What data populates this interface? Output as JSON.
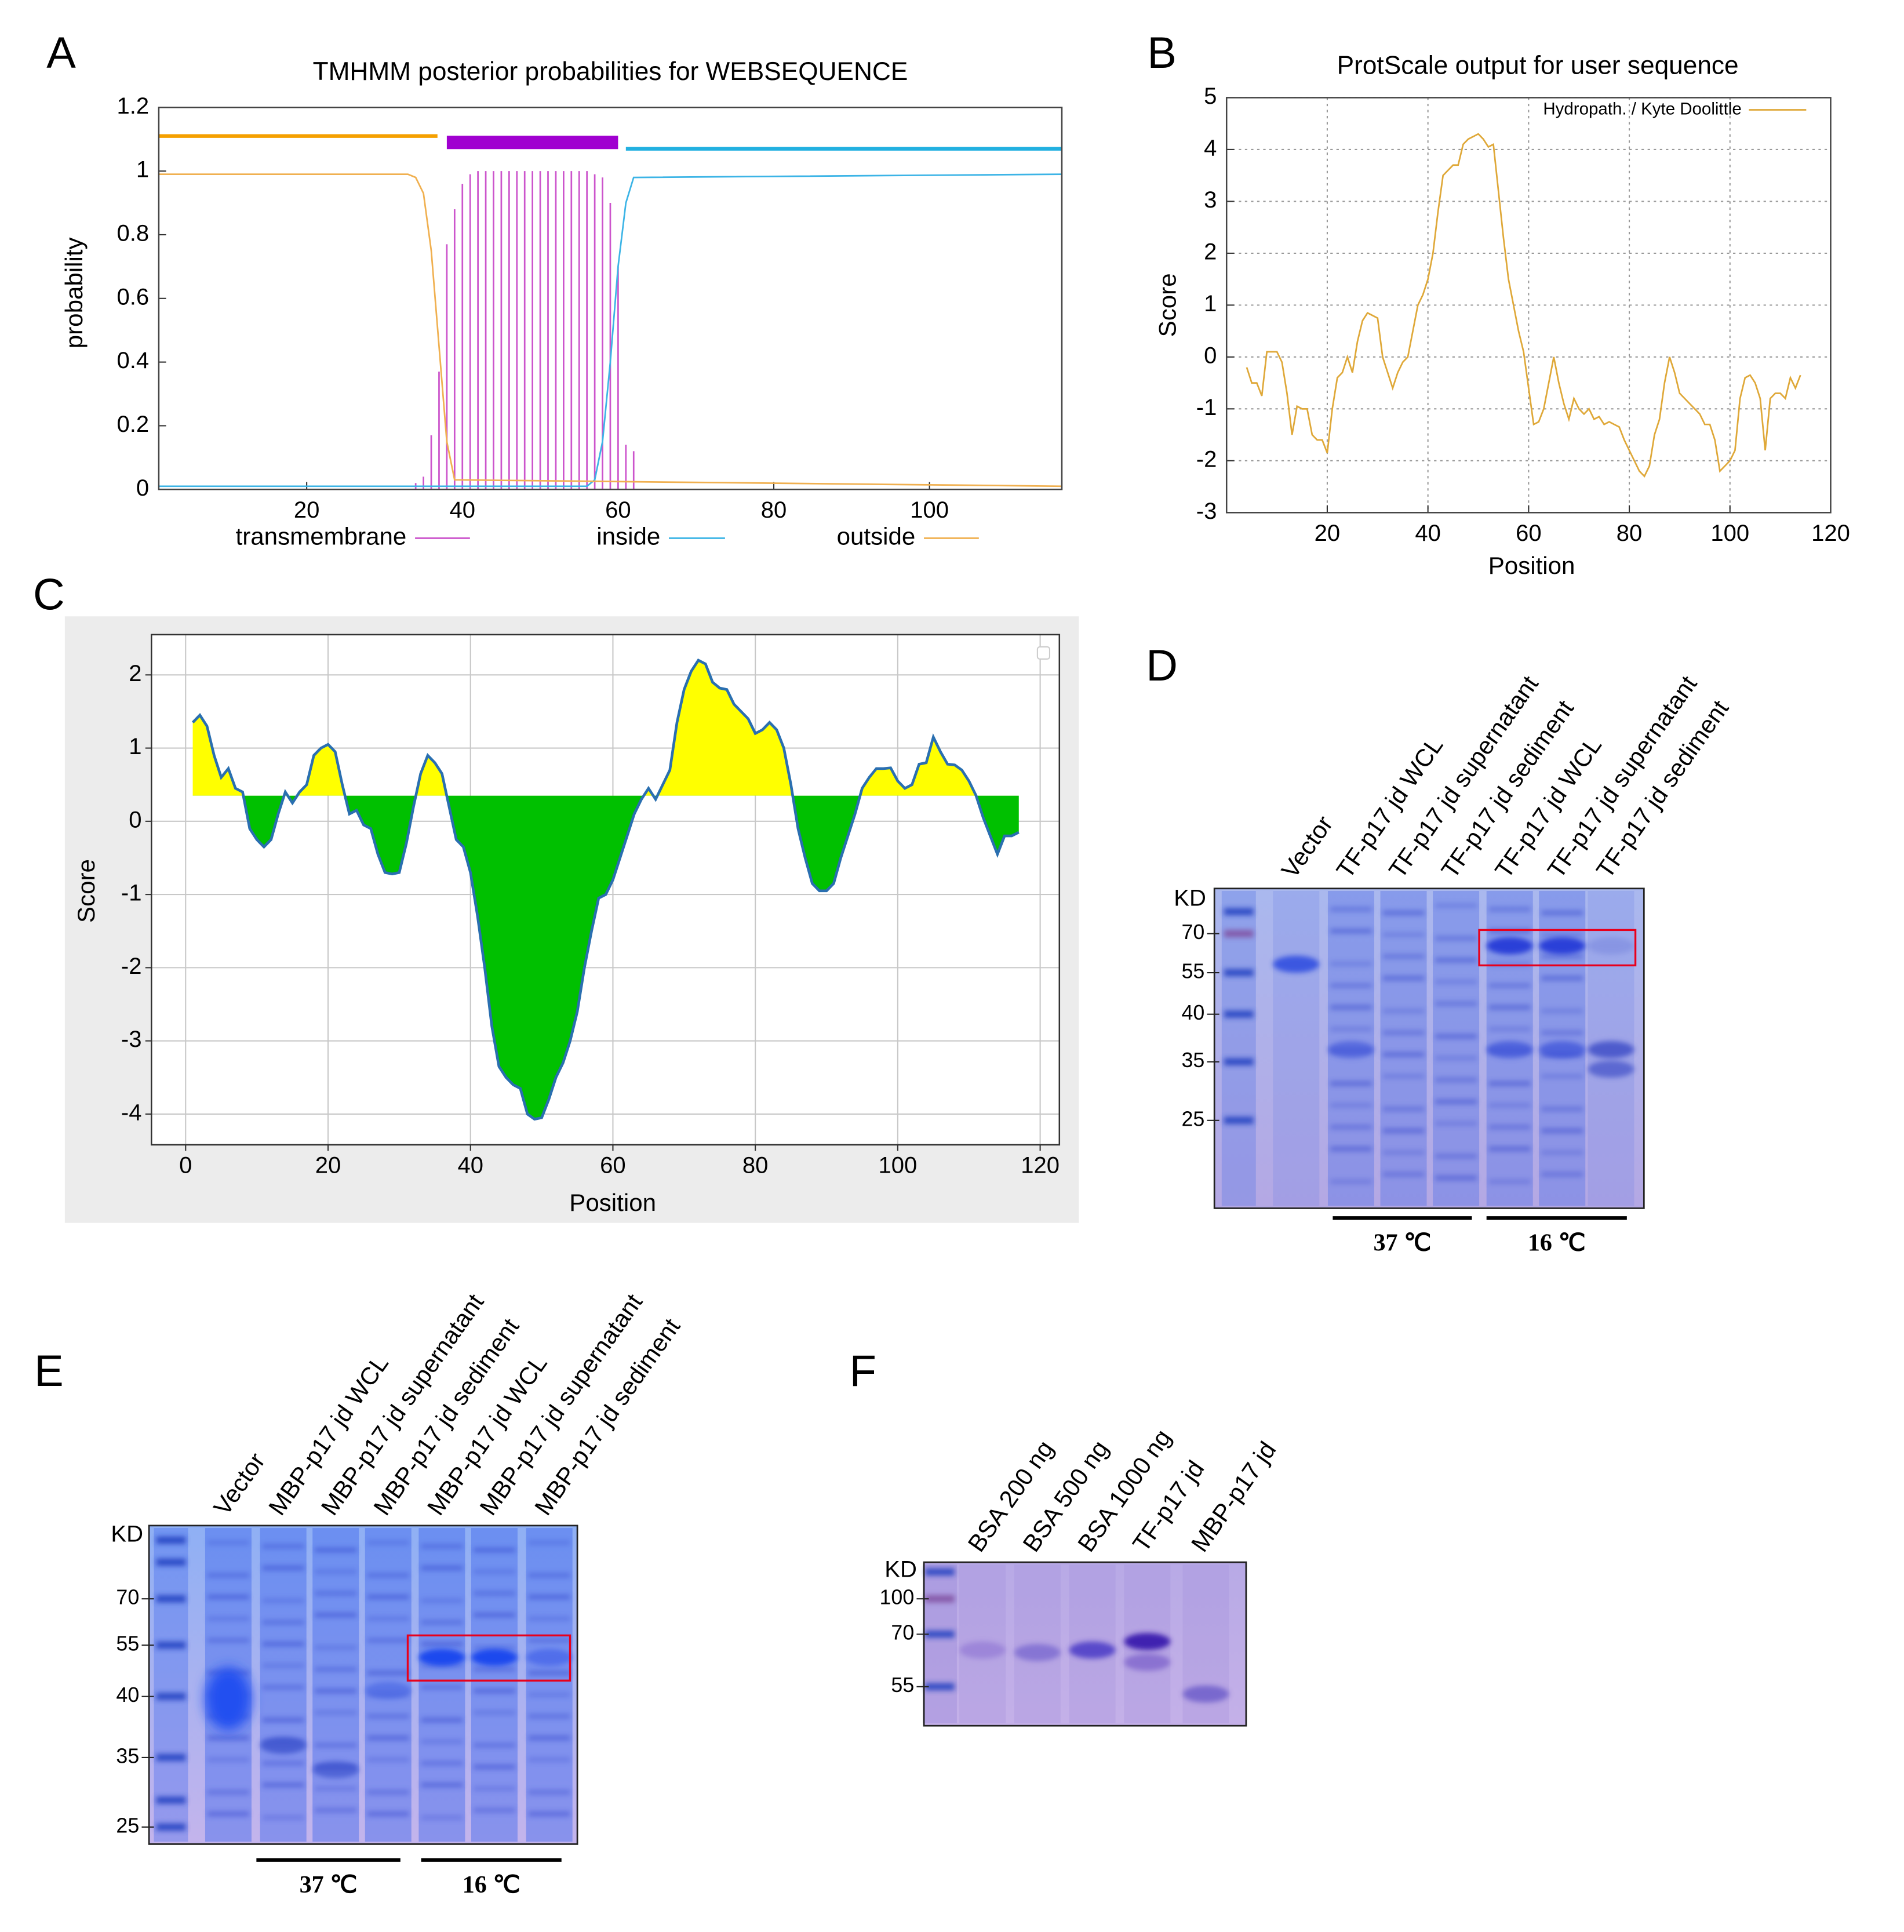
{
  "panel_labels": [
    "A",
    "B",
    "C",
    "D",
    "E",
    "F"
  ],
  "chart_data": [
    {
      "type": "line",
      "title": "TMHMM posterior probabilities for WEBSEQUENCE",
      "ylabel": "probability",
      "xlim": [
        1,
        117
      ],
      "ylim": [
        0,
        1.2
      ],
      "xticks": [
        20,
        40,
        60,
        80,
        100
      ],
      "yticks": [
        0,
        0.2,
        0.4,
        0.6,
        0.8,
        1,
        1.2
      ],
      "grid": false,
      "legend": "bottom",
      "series": [
        {
          "name": "transmembrane",
          "color": "#cc55cc",
          "style": "impulse",
          "x": [
            34,
            35,
            36,
            37,
            38,
            39,
            40,
            41,
            42,
            43,
            44,
            45,
            46,
            47,
            48,
            49,
            50,
            51,
            52,
            53,
            54,
            55,
            56,
            57,
            58,
            59,
            60,
            61,
            62
          ],
          "values": [
            0.02,
            0.04,
            0.17,
            0.37,
            0.77,
            0.88,
            0.96,
            0.99,
            1,
            1,
            1,
            1,
            1,
            1,
            1,
            1,
            1,
            1,
            1,
            1,
            1,
            1,
            1,
            0.99,
            0.98,
            0.9,
            0.7,
            0.14,
            0.12
          ]
        },
        {
          "name": "inside",
          "color": "#3cb4e6",
          "x": [
            1,
            56,
            57,
            58,
            59,
            60,
            61,
            62,
            117
          ],
          "values": [
            0.01,
            0.01,
            0.03,
            0.15,
            0.4,
            0.7,
            0.9,
            0.98,
            0.99
          ]
        },
        {
          "name": "outside",
          "color": "#f0b050",
          "x": [
            1,
            33,
            34,
            35,
            36,
            37,
            38,
            39,
            117
          ],
          "values": [
            0.99,
            0.99,
            0.98,
            0.93,
            0.75,
            0.45,
            0.15,
            0.03,
            0.01
          ]
        }
      ],
      "regions": [
        {
          "start": 1,
          "end": 36.8,
          "level": 1.11,
          "color": "#f5a000"
        },
        {
          "start": 38,
          "end": 60,
          "level": 1.09,
          "color": "#a000d0"
        },
        {
          "start": 61,
          "end": 117,
          "level": 1.07,
          "color": "#22b0e0"
        }
      ]
    },
    {
      "type": "line",
      "title": "ProtScale output for user sequence",
      "xlabel": "Position",
      "ylabel": "Score",
      "xlim": [
        0,
        120
      ],
      "ylim": [
        -3,
        5
      ],
      "xticks": [
        20,
        40,
        60,
        80,
        100,
        120
      ],
      "yticks": [
        -3,
        -2,
        -1,
        0,
        1,
        2,
        3,
        4,
        5
      ],
      "grid": true,
      "legend": "upper right",
      "series": [
        {
          "name": "Hydropath. / Kyte Doolittle",
          "color": "#dfa838",
          "x": [
            4,
            5,
            6,
            7,
            8,
            9,
            10,
            11,
            12,
            13,
            14,
            15,
            16,
            17,
            18,
            19,
            20,
            21,
            22,
            23,
            24,
            25,
            26,
            27,
            28,
            29,
            30,
            31,
            32,
            33,
            34,
            35,
            36,
            37,
            38,
            39,
            40,
            41,
            42,
            43,
            44,
            45,
            46,
            47,
            48,
            49,
            50,
            51,
            52,
            53,
            54,
            55,
            56,
            57,
            58,
            59,
            60,
            61,
            62,
            63,
            64,
            65,
            66,
            67,
            68,
            69,
            70,
            71,
            72,
            73,
            74,
            75,
            76,
            77,
            78,
            79,
            80,
            81,
            82,
            83,
            84,
            85,
            86,
            87,
            88,
            89,
            90,
            91,
            92,
            93,
            94,
            95,
            96,
            97,
            98,
            99,
            100,
            101,
            102,
            103,
            104,
            105,
            106,
            107,
            108,
            109,
            110,
            111,
            112,
            113,
            114
          ],
          "values": [
            -0.2,
            -0.5,
            -0.5,
            -0.75,
            0.1,
            0.1,
            0.1,
            -0.1,
            -0.7,
            -1.5,
            -0.95,
            -1,
            -1,
            -1.5,
            -1.6,
            -1.6,
            -1.85,
            -1,
            -0.4,
            -0.3,
            0,
            -0.3,
            0.3,
            0.7,
            0.85,
            0.8,
            0.75,
            0,
            -0.3,
            -0.6,
            -0.3,
            -0.1,
            0,
            0.5,
            1,
            1.2,
            1.5,
            2,
            2.8,
            3.5,
            3.6,
            3.7,
            3.7,
            4.1,
            4.2,
            4.25,
            4.3,
            4.2,
            4.05,
            4.1,
            3.2,
            2.3,
            1.5,
            1,
            0.5,
            0.1,
            -0.6,
            -1.3,
            -1.25,
            -1,
            -0.5,
            0,
            -0.5,
            -0.9,
            -1.2,
            -0.8,
            -1,
            -1.1,
            -1,
            -1.2,
            -1.15,
            -1.3,
            -1.25,
            -1.3,
            -1.35,
            -1.6,
            -1.8,
            -2,
            -2.2,
            -2.3,
            -2.1,
            -1.5,
            -1.2,
            -0.5,
            0,
            -0.3,
            -0.7,
            -0.8,
            -0.9,
            -1,
            -1.1,
            -1.3,
            -1.3,
            -1.6,
            -2.2,
            -2.1,
            -2,
            -1.8,
            -0.8,
            -0.4,
            -0.35,
            -0.5,
            -0.8,
            -1.8,
            -0.8,
            -0.7,
            -0.7,
            -0.8,
            -0.4,
            -0.6,
            -0.35
          ]
        }
      ]
    },
    {
      "type": "area",
      "xlabel": "Position",
      "ylabel": "Score",
      "xlim": [
        -4.8,
        122.7
      ],
      "ylim": [
        -4.42,
        2.55
      ],
      "xticks": [
        0,
        20,
        40,
        60,
        80,
        100,
        120
      ],
      "yticks": [
        -4,
        -3,
        -2,
        -1,
        0,
        1,
        2
      ],
      "grid": true,
      "threshold": 0.35,
      "above_color": "#ffff00",
      "below_color": "#00c000",
      "series": [
        {
          "color": "#2a6fb0",
          "x": [
            1,
            2,
            3,
            4,
            5,
            6,
            7,
            8,
            9,
            10,
            11,
            12,
            13,
            14,
            15,
            16,
            17,
            18,
            19,
            20,
            21,
            22,
            23,
            24,
            25,
            26,
            27,
            28,
            29,
            30,
            31,
            32,
            33,
            34,
            35,
            36,
            37,
            38,
            39,
            40,
            41,
            42,
            43,
            44,
            45,
            46,
            47,
            48,
            49,
            50,
            51,
            52,
            53,
            54,
            55,
            56,
            57,
            58,
            59,
            60,
            61,
            62,
            63,
            64,
            65,
            66,
            67,
            68,
            69,
            70,
            71,
            72,
            73,
            74,
            75,
            76,
            77,
            78,
            79,
            80,
            81,
            82,
            83,
            84,
            85,
            86,
            87,
            88,
            89,
            90,
            91,
            92,
            93,
            94,
            95,
            96,
            97,
            98,
            99,
            100,
            101,
            102,
            103,
            104,
            105,
            106,
            107,
            108,
            109,
            110,
            111,
            112,
            113,
            114,
            115,
            116,
            117
          ],
          "values": [
            1.35,
            1.45,
            1.3,
            0.9,
            0.6,
            0.72,
            0.45,
            0.4,
            -0.1,
            -0.25,
            -0.35,
            -0.25,
            0.1,
            0.4,
            0.25,
            0.4,
            0.5,
            0.9,
            1,
            1.05,
            0.95,
            0.5,
            0.1,
            0.15,
            -0.05,
            -0.1,
            -0.45,
            -0.7,
            -0.72,
            -0.7,
            -0.3,
            0.2,
            0.65,
            0.9,
            0.8,
            0.65,
            0.2,
            -0.25,
            -0.35,
            -0.7,
            -1.3,
            -2,
            -2.8,
            -3.35,
            -3.5,
            -3.6,
            -3.65,
            -4,
            -4.07,
            -4.05,
            -3.8,
            -3.5,
            -3.3,
            -3,
            -2.6,
            -2,
            -1.5,
            -1.05,
            -1,
            -0.8,
            -0.5,
            -0.2,
            0.1,
            0.3,
            0.45,
            0.3,
            0.5,
            0.7,
            1.35,
            1.8,
            2.05,
            2.2,
            2.15,
            1.9,
            1.82,
            1.8,
            1.6,
            1.5,
            1.4,
            1.2,
            1.25,
            1.35,
            1.25,
            1,
            0.5,
            -0.1,
            -0.5,
            -0.85,
            -0.95,
            -0.95,
            -0.85,
            -0.5,
            -0.2,
            0.1,
            0.45,
            0.6,
            0.72,
            0.72,
            0.73,
            0.55,
            0.45,
            0.5,
            0.78,
            0.8,
            1.15,
            0.95,
            0.78,
            0.77,
            0.7,
            0.55,
            0.35,
            0.05,
            -0.2,
            -0.45,
            -0.2,
            -0.2,
            -0.15
          ]
        }
      ]
    }
  ],
  "gels": [
    {
      "unit": "KD",
      "markers": [
        70,
        55,
        40,
        35,
        25
      ],
      "lanes": [
        "Vector",
        "TF-p17 jd WCL",
        "TF-p17 jd supernatant",
        "TF-p17 jd sediment",
        "TF-p17 jd WCL",
        "TF-p17 jd supernatant",
        "TF-p17 jd sediment"
      ],
      "temperatures": [
        "37 ℃",
        "16 ℃"
      ]
    },
    {
      "unit": "KD",
      "markers": [
        70,
        55,
        40,
        35,
        25
      ],
      "lanes": [
        "Vector",
        "MBP-p17 jd WCL",
        "MBP-p17 jd supernatant",
        "MBP-p17 jd sediment",
        "MBP-p17 jd WCL",
        "MBP-p17 jd supernatant",
        "MBP-p17 jd sediment"
      ],
      "temperatures": [
        "37 ℃",
        "16 ℃"
      ]
    },
    {
      "unit": "KD",
      "markers": [
        100,
        70,
        55
      ],
      "lanes": [
        "BSA 200 ng",
        "BSA 500 ng",
        "BSA 1000 ng",
        "TF-p17 jd",
        "MBP-p17 jd"
      ]
    }
  ]
}
